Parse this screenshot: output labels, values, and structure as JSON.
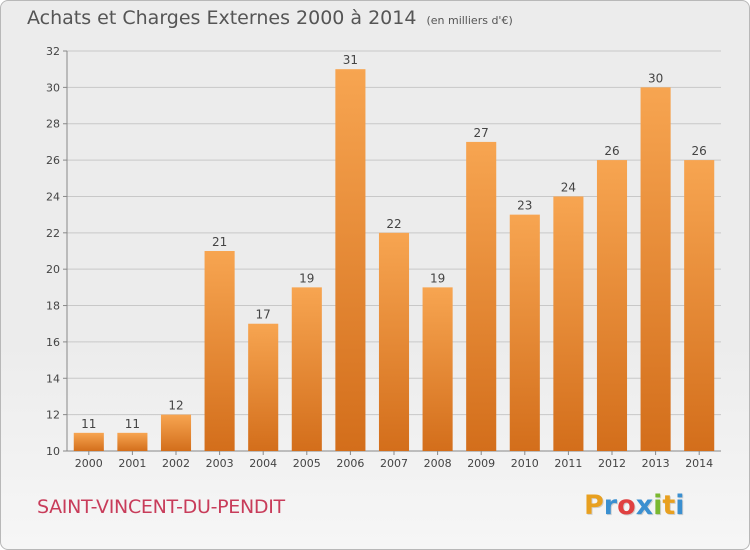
{
  "title": "Achats et Charges Externes 2000 à 2014",
  "unit_note": "(en milliers d'€)",
  "city": "SAINT-VINCENT-DU-PENDIT",
  "logo": {
    "text": "Proxiti",
    "letters": [
      {
        "ch": "P",
        "color": "#e8a020"
      },
      {
        "ch": "r",
        "color": "#3a8fd0"
      },
      {
        "ch": "o",
        "color": "#e04040"
      },
      {
        "ch": "x",
        "color": "#3a8fd0"
      },
      {
        "ch": "i",
        "color": "#7ab830"
      },
      {
        "ch": "t",
        "color": "#e8a020"
      },
      {
        "ch": "i",
        "color": "#3a8fd0"
      }
    ]
  },
  "chart_data": {
    "type": "bar",
    "categories": [
      "2000",
      "2001",
      "2002",
      "2003",
      "2004",
      "2005",
      "2006",
      "2007",
      "2008",
      "2009",
      "2010",
      "2011",
      "2012",
      "2013",
      "2014"
    ],
    "values": [
      11,
      11,
      12,
      21,
      17,
      19,
      31,
      22,
      19,
      27,
      23,
      24,
      26,
      30,
      26
    ],
    "ylim": [
      10,
      32
    ],
    "yticks": [
      10,
      12,
      14,
      16,
      18,
      20,
      22,
      24,
      26,
      28,
      30,
      32
    ],
    "grid": true,
    "colors": {
      "bar_light": "#f7a551",
      "bar_dark": "#d36e1b",
      "grid": "#c8c8c8"
    }
  }
}
